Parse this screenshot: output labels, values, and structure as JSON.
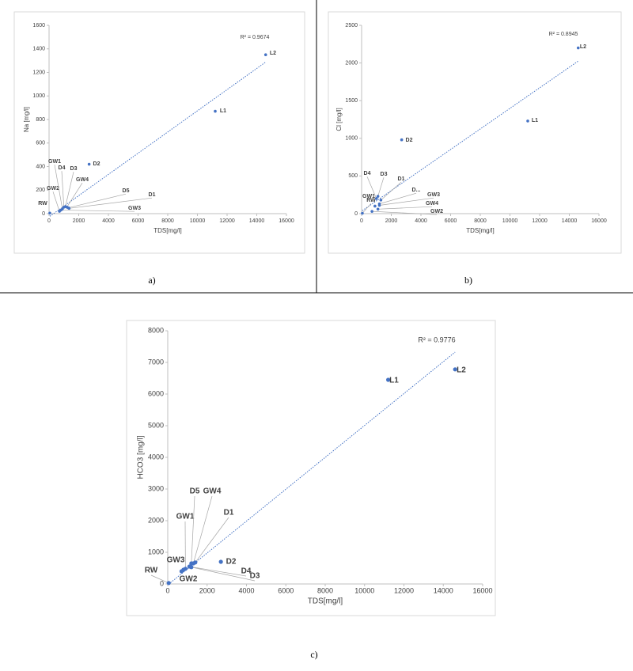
{
  "chart_data": [
    {
      "type": "scatter",
      "ylabel": "Na  [mg/l]",
      "xlabel": "TDS[mg/l]",
      "color": "#4472c4",
      "trendline": "linear",
      "annotation": "R² = 0.9674",
      "point_labels": [
        "RW",
        "GW2",
        "GW3",
        "GW1",
        "D4",
        "D3",
        "GW4",
        "D5",
        "D1",
        "D2",
        "L1",
        "L2"
      ],
      "x": [
        50,
        700,
        800,
        900,
        1000,
        1100,
        1200,
        1300,
        1350,
        2700,
        11200,
        14600
      ],
      "values": [
        5,
        20,
        30,
        40,
        55,
        60,
        55,
        50,
        45,
        420,
        870,
        1350
      ],
      "xlim": [
        0,
        16000
      ],
      "xticks": [
        0,
        2000,
        4000,
        6000,
        8000,
        10000,
        12000,
        14000,
        16000
      ],
      "ylim": [
        0,
        1600
      ],
      "yticks": [
        0,
        200,
        400,
        600,
        800,
        1000,
        1200,
        1400,
        1600
      ]
    },
    {
      "type": "scatter",
      "ylabel": "Cl  [mg/l]",
      "xlabel": "TDS[mg/l]",
      "color": "#4472c4",
      "trendline": "linear",
      "annotation": "R² = 0.8945",
      "point_labels": [
        "RW",
        "GW2",
        "GW1",
        "GW4",
        "D4",
        "D3",
        "D...",
        "GW3",
        "D1",
        "D2",
        "L1",
        "L2"
      ],
      "x": [
        50,
        700,
        900,
        1100,
        1000,
        1100,
        1200,
        1200,
        1300,
        2700,
        11200,
        14600
      ],
      "values": [
        5,
        30,
        100,
        60,
        200,
        230,
        130,
        110,
        180,
        980,
        1230,
        2200
      ],
      "xlim": [
        0,
        16000
      ],
      "xticks": [
        0,
        2000,
        4000,
        6000,
        8000,
        10000,
        12000,
        14000,
        16000
      ],
      "ylim": [
        0,
        2500
      ],
      "yticks": [
        0,
        500,
        1000,
        1500,
        2000,
        2500
      ]
    },
    {
      "type": "scatter",
      "ylabel": "HCO3 [mg/l]",
      "xlabel": "TDS[mg/l]",
      "color": "#4472c4",
      "trendline": "linear",
      "annotation": "R² = 0.9776",
      "point_labels": [
        "RW",
        "GW2",
        "GW3",
        "GW1",
        "D4",
        "D3",
        "D5",
        "GW4",
        "D1",
        "D2",
        "L1",
        "L2"
      ],
      "x": [
        50,
        700,
        800,
        900,
        1100,
        1200,
        1200,
        1300,
        1400,
        2700,
        11200,
        14600
      ],
      "values": [
        30,
        400,
        450,
        480,
        550,
        530,
        650,
        650,
        680,
        700,
        6450,
        6780
      ],
      "xlim": [
        0,
        16000
      ],
      "xticks": [
        0,
        2000,
        4000,
        6000,
        8000,
        10000,
        12000,
        14000,
        16000
      ],
      "ylim": [
        0,
        8000
      ],
      "yticks": [
        0,
        1000,
        2000,
        3000,
        4000,
        5000,
        6000,
        7000,
        8000
      ]
    }
  ],
  "captions": [
    "a)",
    "b)",
    "c)"
  ]
}
